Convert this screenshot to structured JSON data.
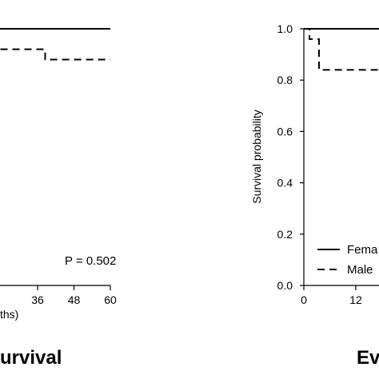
{
  "chart_data": [
    {
      "type": "line",
      "step": true,
      "x_range": [
        null,
        60
      ],
      "y_range": [
        0,
        1
      ],
      "xticks_visible": [
        "36",
        "48",
        "60"
      ],
      "xlabel_visible": "ths)",
      "title_visible": "urvival",
      "annotation": "P = 0.502",
      "series": [
        {
          "style": "solid",
          "x": [
            0,
            60
          ],
          "y": [
            1.0,
            1.0
          ]
        },
        {
          "style": "dashed",
          "x": [
            0,
            36,
            38.5,
            38.5,
            60
          ],
          "y": [
            0.92,
            0.92,
            0.92,
            0.88,
            0.88
          ]
        }
      ]
    },
    {
      "type": "line",
      "step": true,
      "x_range": [
        0,
        null
      ],
      "y_range": [
        0,
        1.0
      ],
      "ylabel": "Survival probability",
      "yticks": [
        "0.0",
        "0.2",
        "0.4",
        "0.6",
        "0.8",
        "1.0"
      ],
      "xticks_visible": [
        "0",
        "12"
      ],
      "title_visible": "Ev",
      "legend": {
        "position": "bottom-right",
        "entries": [
          "Fema",
          "Male"
        ]
      },
      "series": [
        {
          "name": "Female",
          "style": "solid",
          "x": [
            0,
            0.5,
            24
          ],
          "y": [
            1.0,
            1.0,
            1.0
          ]
        },
        {
          "name": "Male",
          "style": "dashed",
          "x": [
            0,
            1.3,
            1.3,
            3.5,
            3.5,
            24
          ],
          "y": [
            1.0,
            1.0,
            0.96,
            0.96,
            0.84,
            0.84
          ]
        }
      ]
    }
  ]
}
